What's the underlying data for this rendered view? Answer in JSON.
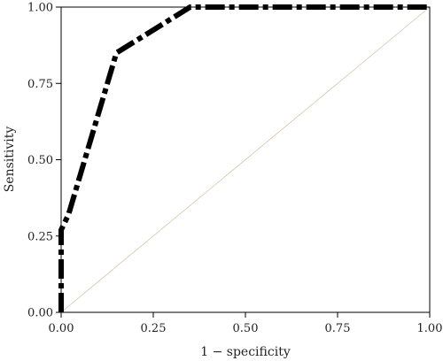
{
  "chart_data": {
    "type": "line",
    "title": "",
    "xlabel": "1 − specificity",
    "ylabel": "Sensitivity",
    "xlim": [
      0,
      1
    ],
    "ylim": [
      0,
      1
    ],
    "xticks": [
      "0.00",
      "0.25",
      "0.50",
      "0.75",
      "1.00"
    ],
    "yticks": [
      "0.00",
      "0.25",
      "0.50",
      "0.75",
      "1.00"
    ],
    "grid": false,
    "legend": "none",
    "series": [
      {
        "style": "dash-dot",
        "color": "#000000",
        "x": [
          0,
          0,
          0.02,
          0.15,
          0.35,
          1.0
        ],
        "y": [
          0,
          0.27,
          0.32,
          0.85,
          1.0,
          1.0
        ]
      }
    ],
    "reference_line": {
      "color": "#d4c7a8",
      "x": [
        0,
        1
      ],
      "y": [
        0,
        1
      ]
    }
  }
}
